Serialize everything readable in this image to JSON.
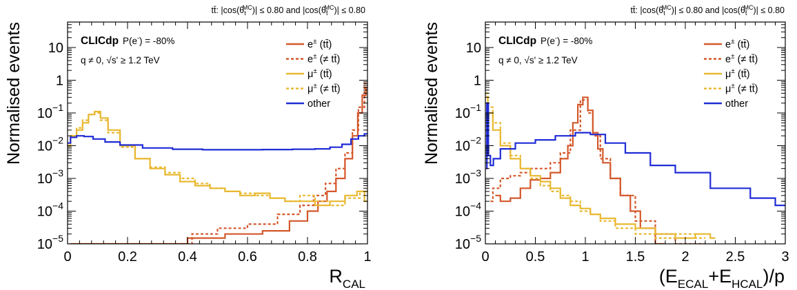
{
  "chart_data": [
    {
      "type": "line",
      "header": "tt̄: |cos(θ_t^MC)| ≤ 0.80 and |cos(θ_t̄^MC)| ≤ 0.80",
      "brand": "CLICdp",
      "polarisation": "P(e⁻) = -80%",
      "selection": "q ≠ 0, √s' ≥ 1.2 TeV",
      "ylabel": "Normalised events",
      "xlabel": "R_CAL",
      "xlim": [
        0,
        1
      ],
      "ylim": [
        1e-05,
        60
      ],
      "yscale": "log",
      "xticks": [
        0,
        0.2,
        0.4,
        0.6,
        0.8,
        1
      ],
      "xtick_labels": [
        "0",
        "0.2",
        "0.4",
        "0.6",
        "0.8",
        "1"
      ],
      "yticks": [
        1e-05,
        0.0001,
        0.001,
        0.01,
        0.1,
        1,
        10
      ],
      "ytick_labels": [
        [
          "10",
          "−5"
        ],
        [
          "10",
          "−4"
        ],
        [
          "10",
          "−3"
        ],
        [
          "10",
          "−2"
        ],
        [
          "10",
          "−1"
        ],
        [
          "1",
          ""
        ],
        [
          "10",
          ""
        ]
      ],
      "legend": "top-right",
      "series": [
        {
          "name": "e± (tt̄)",
          "color": "#d4572a",
          "dash": false,
          "points": [
            [
              0.01,
              1e-05
            ],
            [
              0.35,
              1e-05
            ],
            [
              0.45,
              1.5e-05
            ],
            [
              0.6,
              2e-05
            ],
            [
              0.7,
              2.5e-05
            ],
            [
              0.78,
              5e-05
            ],
            [
              0.82,
              0.0001
            ],
            [
              0.85,
              0.0002
            ],
            [
              0.88,
              0.0004
            ],
            [
              0.91,
              0.001
            ],
            [
              0.94,
              0.004
            ],
            [
              0.96,
              0.02
            ],
            [
              0.975,
              0.1
            ],
            [
              0.99,
              0.35
            ],
            [
              1.0,
              0.6
            ]
          ]
        },
        {
          "name": "e± (≠ tt̄)",
          "color": "#d4572a",
          "dash": true,
          "points": [
            [
              0.38,
              1e-05
            ],
            [
              0.45,
              2e-05
            ],
            [
              0.55,
              3e-05
            ],
            [
              0.65,
              4e-05
            ],
            [
              0.75,
              8e-05
            ],
            [
              0.8,
              0.00015
            ],
            [
              0.84,
              0.0003
            ],
            [
              0.88,
              0.0007
            ],
            [
              0.91,
              0.002
            ],
            [
              0.94,
              0.006
            ],
            [
              0.96,
              0.03
            ],
            [
              0.98,
              0.15
            ],
            [
              1.0,
              0.8
            ]
          ]
        },
        {
          "name": "μ± (tt̄)",
          "color": "#e8b830",
          "dash": false,
          "points": [
            [
              0.0,
              0.01
            ],
            [
              0.02,
              0.02
            ],
            [
              0.04,
              0.03
            ],
            [
              0.06,
              0.05
            ],
            [
              0.08,
              0.09
            ],
            [
              0.1,
              0.11
            ],
            [
              0.12,
              0.07
            ],
            [
              0.15,
              0.03
            ],
            [
              0.2,
              0.01
            ],
            [
              0.25,
              0.004
            ],
            [
              0.3,
              0.002
            ],
            [
              0.35,
              0.0013
            ],
            [
              0.4,
              0.0008
            ],
            [
              0.45,
              0.0006
            ],
            [
              0.5,
              0.0005
            ],
            [
              0.55,
              0.0004
            ],
            [
              0.6,
              0.0003
            ],
            [
              0.65,
              0.00035
            ],
            [
              0.7,
              0.00025
            ],
            [
              0.75,
              0.0002
            ],
            [
              0.8,
              0.0002
            ],
            [
              0.85,
              0.00015
            ],
            [
              0.9,
              0.0002
            ],
            [
              0.95,
              0.0003
            ],
            [
              0.98,
              0.0004
            ],
            [
              1.0,
              0.0002
            ]
          ]
        },
        {
          "name": "μ± (≠ tt̄)",
          "color": "#e8b830",
          "dash": true,
          "points": [
            [
              0.0,
              0.01
            ],
            [
              0.02,
              0.02
            ],
            [
              0.04,
              0.035
            ],
            [
              0.06,
              0.06
            ],
            [
              0.08,
              0.09
            ],
            [
              0.1,
              0.1
            ],
            [
              0.12,
              0.06
            ],
            [
              0.15,
              0.025
            ],
            [
              0.2,
              0.009
            ],
            [
              0.25,
              0.004
            ],
            [
              0.3,
              0.0022
            ],
            [
              0.35,
              0.0015
            ],
            [
              0.4,
              0.001
            ],
            [
              0.45,
              0.0007
            ],
            [
              0.5,
              0.0005
            ],
            [
              0.55,
              0.0004
            ],
            [
              0.6,
              0.00035
            ],
            [
              0.65,
              0.0003
            ],
            [
              0.7,
              0.00025
            ],
            [
              0.75,
              0.0002
            ],
            [
              0.8,
              0.0003
            ],
            [
              0.85,
              0.0002
            ],
            [
              0.9,
              0.00015
            ],
            [
              0.95,
              0.00025
            ],
            [
              1.0,
              0.0004
            ]
          ]
        },
        {
          "name": "other",
          "color": "#1f2bd6",
          "dash": false,
          "points": [
            [
              0.0,
              0.012
            ],
            [
              0.02,
              0.018
            ],
            [
              0.04,
              0.02
            ],
            [
              0.07,
              0.019
            ],
            [
              0.1,
              0.016
            ],
            [
              0.15,
              0.013
            ],
            [
              0.2,
              0.0105
            ],
            [
              0.3,
              0.0085
            ],
            [
              0.4,
              0.0078
            ],
            [
              0.5,
              0.0075
            ],
            [
              0.6,
              0.0075
            ],
            [
              0.7,
              0.0076
            ],
            [
              0.8,
              0.0078
            ],
            [
              0.85,
              0.008
            ],
            [
              0.9,
              0.009
            ],
            [
              0.93,
              0.011
            ],
            [
              0.96,
              0.016
            ],
            [
              0.98,
              0.02
            ],
            [
              1.0,
              0.023
            ]
          ]
        }
      ]
    },
    {
      "type": "line",
      "header": "tt̄: |cos(θ_t^MC)| ≤ 0.80 and |cos(θ_t̄^MC)| ≤ 0.80",
      "brand": "CLICdp",
      "polarisation": "P(e⁻) = -80%",
      "selection": "q ≠ 0, √s' ≥ 1.2 TeV",
      "ylabel": "Normalised events",
      "xlabel": "(E_ECAL+E_HCAL)/p",
      "xlim": [
        0,
        3
      ],
      "ylim": [
        1e-05,
        60
      ],
      "yscale": "log",
      "xticks": [
        0,
        0.5,
        1,
        1.5,
        2,
        2.5,
        3
      ],
      "xtick_labels": [
        "0",
        "0.5",
        "1",
        "1.5",
        "2",
        "2.5",
        "3"
      ],
      "yticks": [
        1e-05,
        0.0001,
        0.001,
        0.01,
        0.1,
        1,
        10
      ],
      "ytick_labels": [
        [
          "10",
          "−5"
        ],
        [
          "10",
          "−4"
        ],
        [
          "10",
          "−3"
        ],
        [
          "10",
          "−2"
        ],
        [
          "10",
          "−1"
        ],
        [
          "1",
          ""
        ],
        [
          "10",
          ""
        ]
      ],
      "legend": "top-right",
      "series": [
        {
          "name": "e± (tt̄)",
          "color": "#d4572a",
          "dash": false,
          "points": [
            [
              0.1,
              0.0003
            ],
            [
              0.2,
              0.0002
            ],
            [
              0.3,
              0.00025
            ],
            [
              0.4,
              0.0005
            ],
            [
              0.5,
              0.0009
            ],
            [
              0.6,
              0.001
            ],
            [
              0.7,
              0.0015
            ],
            [
              0.8,
              0.004
            ],
            [
              0.85,
              0.01
            ],
            [
              0.9,
              0.05
            ],
            [
              0.95,
              0.18
            ],
            [
              1.0,
              0.3
            ],
            [
              1.05,
              0.12
            ],
            [
              1.1,
              0.025
            ],
            [
              1.15,
              0.008
            ],
            [
              1.2,
              0.003
            ],
            [
              1.3,
              0.001
            ],
            [
              1.4,
              0.0003
            ],
            [
              1.5,
              0.0001
            ],
            [
              1.6,
              3e-05
            ],
            [
              1.8,
              1e-05
            ]
          ]
        },
        {
          "name": "e± (≠ tt̄)",
          "color": "#d4572a",
          "dash": true,
          "points": [
            [
              0.05,
              0.0002
            ],
            [
              0.1,
              0.0005
            ],
            [
              0.2,
              0.001
            ],
            [
              0.3,
              0.0012
            ],
            [
              0.4,
              0.0015
            ],
            [
              0.5,
              0.002
            ],
            [
              0.6,
              0.002
            ],
            [
              0.7,
              0.003
            ],
            [
              0.8,
              0.006
            ],
            [
              0.9,
              0.03
            ],
            [
              1.0,
              0.25
            ],
            [
              1.05,
              0.1
            ],
            [
              1.1,
              0.02
            ],
            [
              1.2,
              0.004
            ],
            [
              1.3,
              0.001
            ],
            [
              1.4,
              0.0003
            ],
            [
              1.6,
              5e-05
            ],
            [
              1.8,
              2e-05
            ],
            [
              2.0,
              1e-05
            ],
            [
              2.2,
              1e-05
            ]
          ]
        },
        {
          "name": "μ± (tt̄)",
          "color": "#e8b830",
          "dash": false,
          "points": [
            [
              0.0,
              0.3
            ],
            [
              0.05,
              0.1
            ],
            [
              0.1,
              0.03
            ],
            [
              0.2,
              0.01
            ],
            [
              0.3,
              0.004
            ],
            [
              0.4,
              0.002
            ],
            [
              0.5,
              0.0012
            ],
            [
              0.6,
              0.0008
            ],
            [
              0.7,
              0.0005
            ],
            [
              0.8,
              0.00025
            ],
            [
              0.9,
              0.00015
            ],
            [
              1.0,
              0.00012
            ],
            [
              1.1,
              8e-05
            ],
            [
              1.2,
              6e-05
            ],
            [
              1.4,
              4e-05
            ],
            [
              1.6,
              3e-05
            ],
            [
              1.8,
              2e-05
            ],
            [
              2.0,
              1.5e-05
            ],
            [
              2.2,
              2e-05
            ],
            [
              2.3,
              1.5e-05
            ]
          ]
        },
        {
          "name": "μ± (≠ tt̄)",
          "color": "#e8b830",
          "dash": true,
          "points": [
            [
              0.0,
              0.4
            ],
            [
              0.05,
              0.15
            ],
            [
              0.1,
              0.05
            ],
            [
              0.2,
              0.012
            ],
            [
              0.3,
              0.005
            ],
            [
              0.4,
              0.002
            ],
            [
              0.5,
              0.001
            ],
            [
              0.6,
              0.0006
            ],
            [
              0.7,
              0.0004
            ],
            [
              0.8,
              0.0003
            ],
            [
              0.9,
              0.0002
            ],
            [
              1.0,
              0.0001
            ],
            [
              1.1,
              8e-05
            ],
            [
              1.2,
              5e-05
            ],
            [
              1.4,
              3e-05
            ],
            [
              1.6,
              2e-05
            ],
            [
              1.8,
              1.5e-05
            ],
            [
              2.0,
              2e-05
            ],
            [
              2.2,
              1.5e-05
            ]
          ]
        },
        {
          "name": "other",
          "color": "#1f2bd6",
          "dash": false,
          "points": [
            [
              0.01,
              0.002
            ],
            [
              0.02,
              0.2
            ],
            [
              0.04,
              0.005
            ],
            [
              0.06,
              0.0025
            ],
            [
              0.1,
              0.004
            ],
            [
              0.2,
              0.008
            ],
            [
              0.4,
              0.012
            ],
            [
              0.6,
              0.015
            ],
            [
              0.8,
              0.02
            ],
            [
              1.0,
              0.025
            ],
            [
              1.1,
              0.022
            ],
            [
              1.3,
              0.012
            ],
            [
              1.5,
              0.006
            ],
            [
              1.8,
              0.0025
            ],
            [
              2.0,
              0.0015
            ],
            [
              2.5,
              0.0005
            ],
            [
              2.8,
              0.00025
            ],
            [
              3.0,
              0.00015
            ]
          ]
        }
      ]
    }
  ]
}
